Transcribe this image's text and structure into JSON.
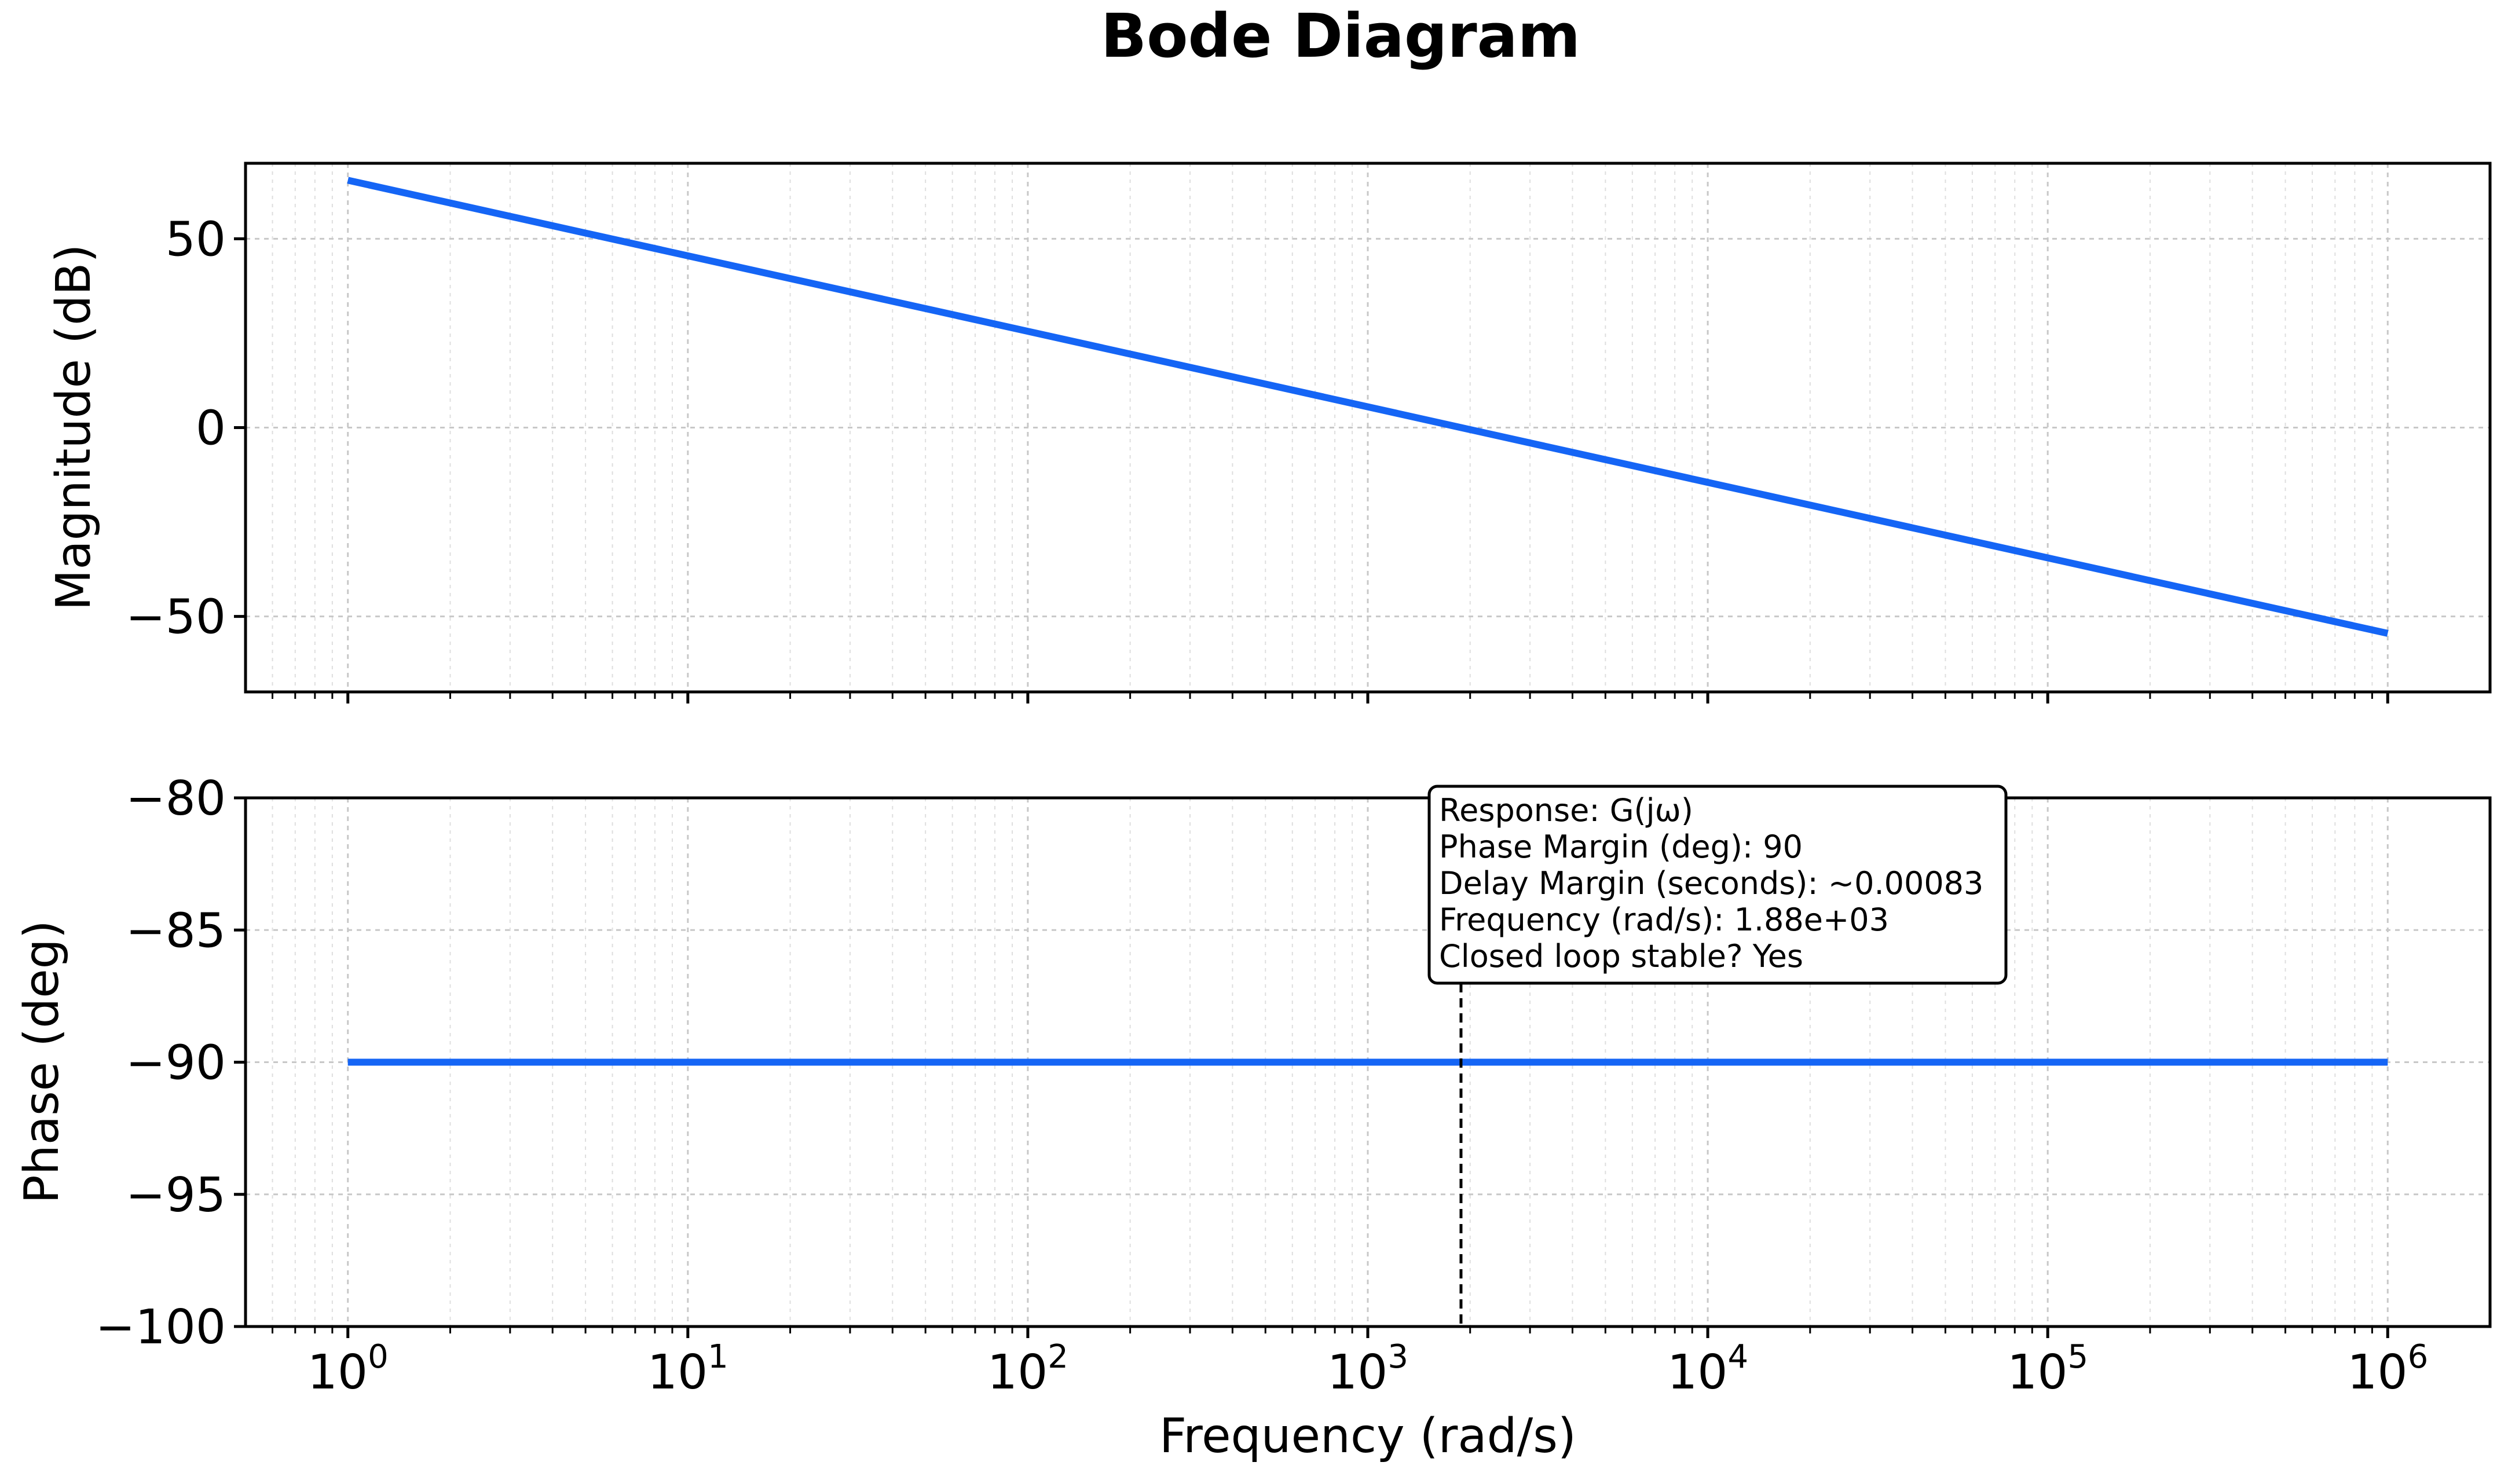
{
  "chart_data": {
    "type": "line",
    "title": "Bode Diagram",
    "x_scale": "log",
    "xlabel": "Frequency (rad/s)",
    "xlim": [
      0.5,
      2000000
    ],
    "x_ticks": [
      {
        "value": 1,
        "base": "10",
        "exp": "0"
      },
      {
        "value": 10,
        "base": "10",
        "exp": "1"
      },
      {
        "value": 100,
        "base": "10",
        "exp": "2"
      },
      {
        "value": 1000,
        "base": "10",
        "exp": "3"
      },
      {
        "value": 10000,
        "base": "10",
        "exp": "4"
      },
      {
        "value": 100000,
        "base": "10",
        "exp": "5"
      },
      {
        "value": 1000000,
        "base": "10",
        "exp": "6"
      }
    ],
    "grid": true,
    "line_color": "#1565f5",
    "panels": [
      {
        "id": "magnitude",
        "ylabel": "Magnitude (dB)",
        "ylim": [
          -70,
          70
        ],
        "yticks": [
          {
            "value": 50,
            "label": "50"
          },
          {
            "value": 0,
            "label": "0"
          },
          {
            "value": -50,
            "label": "−50"
          }
        ],
        "series": [
          {
            "x": [
              1,
              10,
              100,
              1000,
              1880,
              10000,
              100000,
              1000000
            ],
            "y": [
              65.5,
              45.5,
              25.5,
              5.5,
              0,
              -14.5,
              -34.5,
              -54.5
            ]
          }
        ]
      },
      {
        "id": "phase",
        "ylabel": "Phase (deg)",
        "ylim": [
          -100,
          -80
        ],
        "yticks": [
          {
            "value": -80,
            "label": "−80"
          },
          {
            "value": -85,
            "label": "−85"
          },
          {
            "value": -90,
            "label": "−90"
          },
          {
            "value": -95,
            "label": "−95"
          },
          {
            "value": -100,
            "label": "−100"
          }
        ],
        "series": [
          {
            "x": [
              1,
              1000000
            ],
            "y": [
              -90,
              -90
            ]
          }
        ],
        "marker": {
          "x": 1880,
          "style": "dashed"
        },
        "annotation": {
          "lines": [
            "Response: G(jω)",
            "Phase Margin (deg): 90",
            "Delay Margin (seconds): ~0.00083",
            "Frequency (rad/s): 1.88e+03",
            "Closed loop stable? Yes"
          ]
        }
      }
    ]
  }
}
